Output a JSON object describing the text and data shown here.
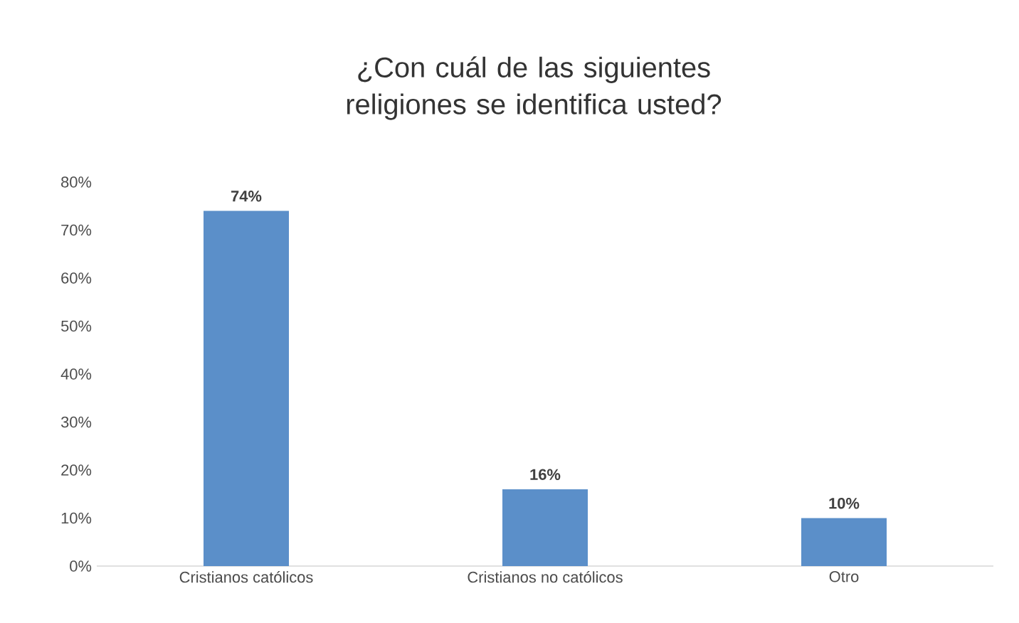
{
  "chart_data": {
    "type": "bar",
    "title": "¿Con cuál de las siguientes religiones se identifica usted?",
    "categories": [
      "Cristianos católicos",
      "Cristianos no católicos",
      "Otro"
    ],
    "values": [
      74,
      16,
      10
    ],
    "value_labels": [
      "74%",
      "16%",
      "10%"
    ],
    "color": "#5b8fc9",
    "ylim": [
      0,
      80
    ],
    "yticks": [
      {
        "value": 0,
        "label": "0%"
      },
      {
        "value": 10,
        "label": "10%"
      },
      {
        "value": 20,
        "label": "20%"
      },
      {
        "value": 30,
        "label": "30%"
      },
      {
        "value": 40,
        "label": "40%"
      },
      {
        "value": 50,
        "label": "50%"
      },
      {
        "value": 60,
        "label": "60%"
      },
      {
        "value": 70,
        "label": "70%"
      },
      {
        "value": 80,
        "label": "80%"
      }
    ]
  }
}
